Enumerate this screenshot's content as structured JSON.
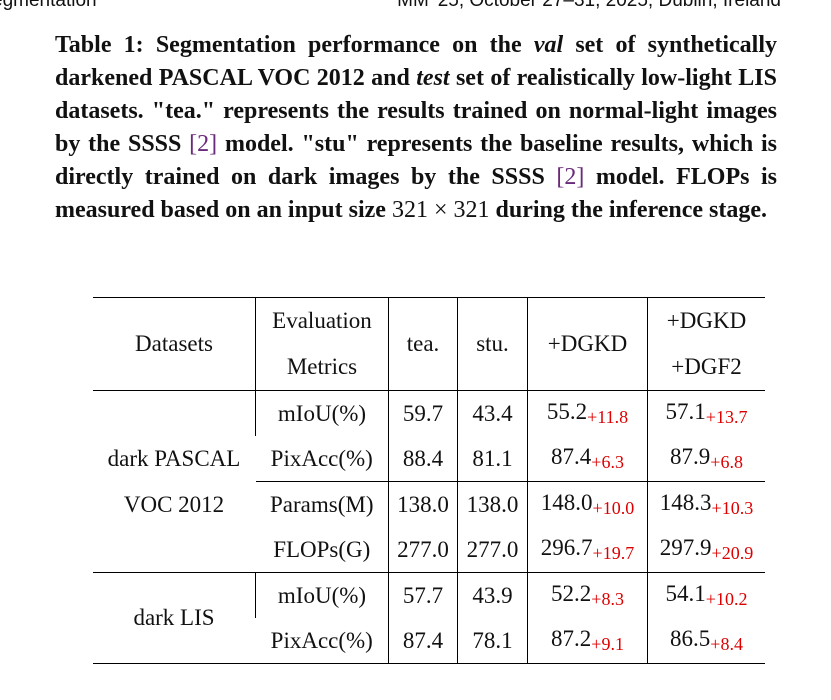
{
  "header": {
    "left": "egmentation",
    "right": "MM '25, October 27–31, 2025, Dublin, Ireland"
  },
  "caption": [
    "Table 1: Segmentation performance on the ",
    "val",
    " set of synthetically darkened PASCAL VOC 2012 and ",
    "test",
    " set of realistically low-light LIS datasets. \"tea.\" represents the results trained on normal-light images by the SSSS ",
    "[2]",
    " model. \"stu\" represents the baseline results, which is directly trained on dark images by the SSSS ",
    "[2]",
    " model. FLOPs is measured based on an input size ",
    "321 × 321",
    " during the inference stage."
  ],
  "table": {
    "columns": [
      [
        "Datasets"
      ],
      [
        "Evaluation",
        "Metrics"
      ],
      [
        "tea."
      ],
      [
        "stu."
      ],
      [
        "+DGKD"
      ],
      [
        "+DGKD",
        "+DGF2"
      ]
    ],
    "groups": [
      {
        "name": "dark PASCAL VOC 2012",
        "rows": [
          {
            "metric": "mIoU(%)",
            "tea": "59.7",
            "stu": "43.4",
            "dgkd": "55.2",
            "dgkd_gain": "+11.8",
            "dgf2": "57.1",
            "dgf2_gain": "+13.7"
          },
          {
            "metric": "PixAcc(%)",
            "tea": "88.4",
            "stu": "81.1",
            "dgkd": "87.4",
            "dgkd_gain": "+6.3",
            "dgf2": "87.9",
            "dgf2_gain": "+6.8"
          },
          {
            "metric": "Params(M)",
            "tea": "138.0",
            "stu": "138.0",
            "dgkd": "148.0",
            "dgkd_gain": "+10.0",
            "dgf2": "148.3",
            "dgf2_gain": "+10.3"
          },
          {
            "metric": "FLOPs(G)",
            "tea": "277.0",
            "stu": "277.0",
            "dgkd": "296.7",
            "dgkd_gain": "+19.7",
            "dgf2": "297.9",
            "dgf2_gain": "+20.9"
          }
        ]
      },
      {
        "name": "dark LIS",
        "rows": [
          {
            "metric": "mIoU(%)",
            "tea": "57.7",
            "stu": "43.9",
            "dgkd": "52.2",
            "dgkd_gain": "+8.3",
            "dgf2": "54.1",
            "dgf2_gain": "+10.2"
          },
          {
            "metric": "PixAcc(%)",
            "tea": "87.4",
            "stu": "78.1",
            "dgkd": "87.2",
            "dgkd_gain": "+9.1",
            "dgf2": "86.5",
            "dgf2_gain": "+8.4"
          }
        ]
      }
    ]
  }
}
